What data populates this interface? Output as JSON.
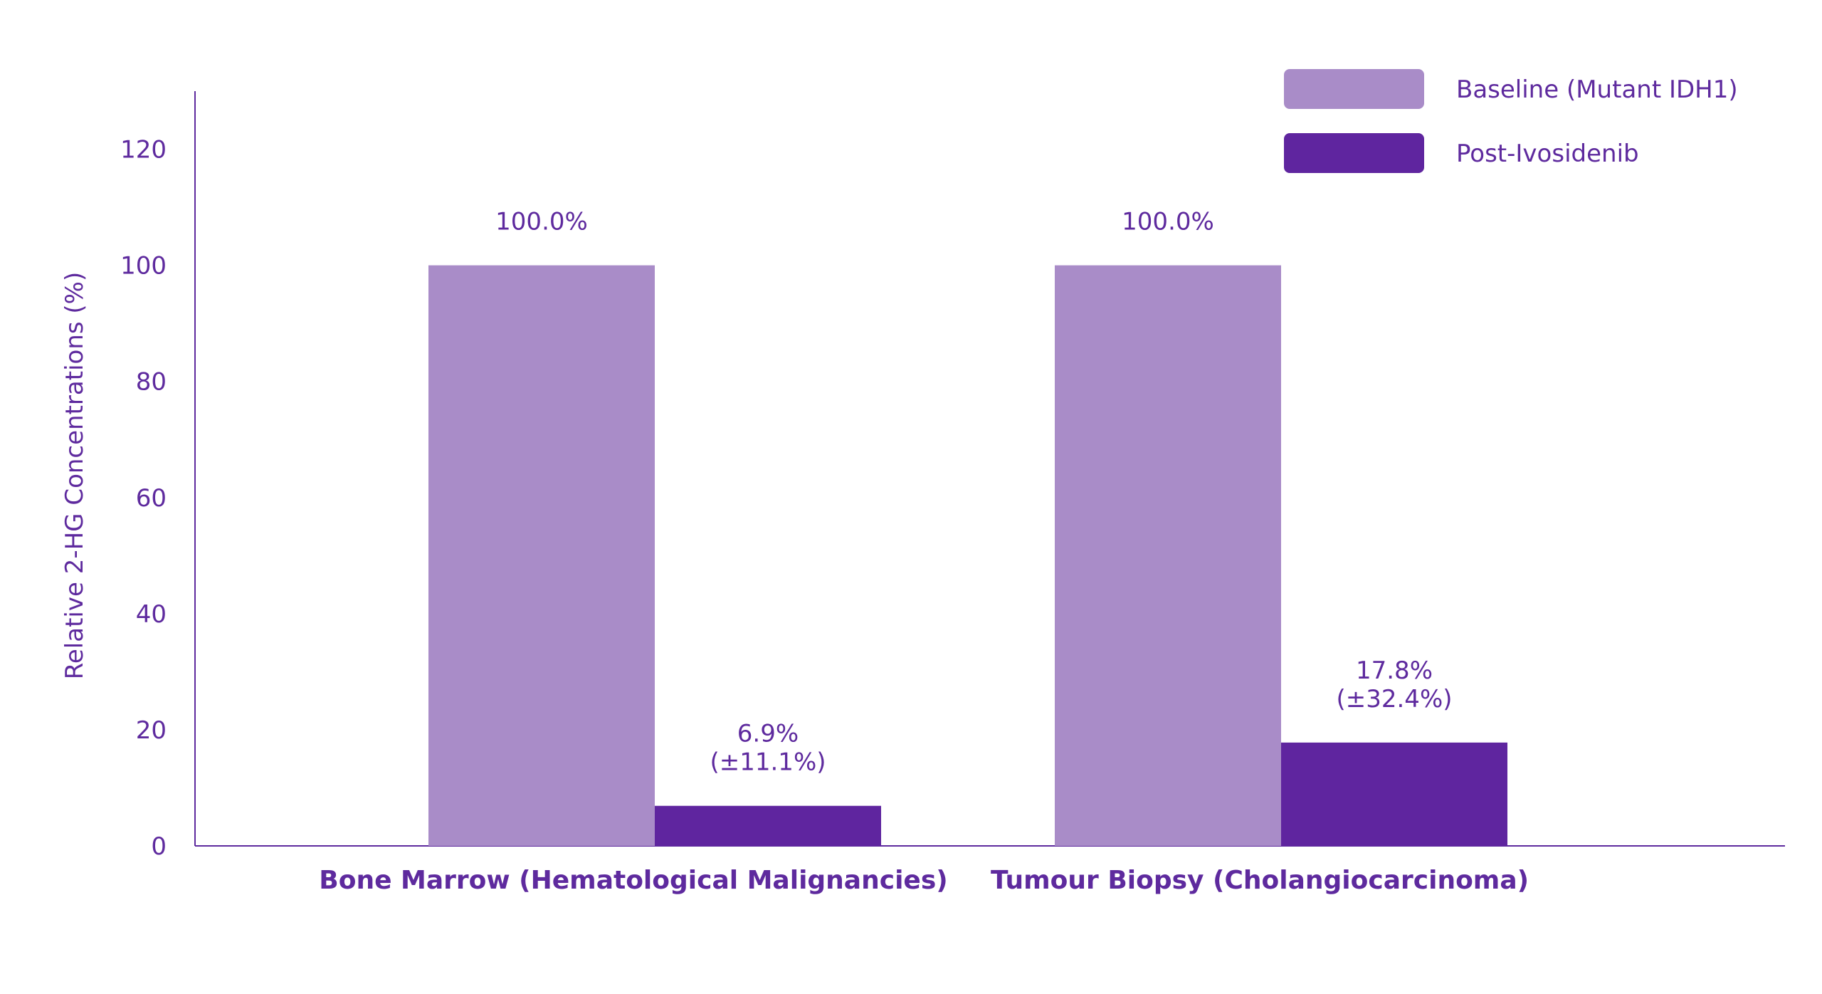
{
  "chart_data": {
    "type": "bar",
    "title": "",
    "xlabel": "",
    "ylabel": "Relative 2-HG Concentrations (%)",
    "ylim": [
      0,
      130
    ],
    "yticks": [
      0,
      20,
      40,
      60,
      80,
      100,
      120
    ],
    "grid": false,
    "legend_position": "top-right",
    "categories": [
      "Bone Marrow (Hematological Malignancies)",
      "Tumour Biopsy (Cholangiocarcinoma)"
    ],
    "series": [
      {
        "name": "Baseline (Mutant IDH1)",
        "color": "#a98cc8",
        "values": [
          100.0,
          100.0
        ],
        "labels": [
          [
            "100.0%"
          ],
          [
            "100.0%"
          ]
        ]
      },
      {
        "name": "Post-Ivosidenib",
        "color": "#5f259f",
        "values": [
          6.9,
          17.8
        ],
        "labels": [
          [
            "6.9%",
            "(±11.1%)"
          ],
          [
            "17.8%",
            "(±32.4%)"
          ]
        ]
      }
    ]
  },
  "colors": {
    "text": "#5e2a9e",
    "axis": "#5e2a9e"
  }
}
